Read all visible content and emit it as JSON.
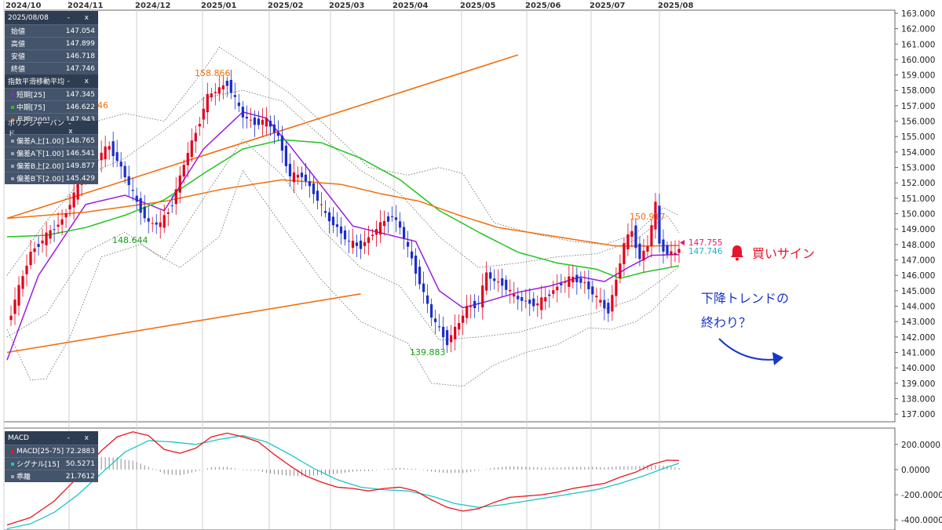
{
  "chart_data": {
    "type": "candlestick",
    "x_ticks": [
      "2024/10",
      "2024/11",
      "2024/12",
      "2025/01",
      "2025/02",
      "2025/03",
      "2025/04",
      "2025/05",
      "2025/06",
      "2025/07",
      "2025/08"
    ],
    "price_axis": {
      "ylim": [
        136.5,
        163.2
      ],
      "ticks": [
        "163.000",
        "162.000",
        "161.000",
        "160.000",
        "159.000",
        "158.000",
        "157.000",
        "156.000",
        "155.000",
        "154.000",
        "153.000",
        "152.000",
        "151.000",
        "150.000",
        "149.000",
        "148.000",
        "147.000",
        "146.000",
        "145.000",
        "144.000",
        "143.000",
        "142.000",
        "141.000",
        "140.000",
        "139.000",
        "138.000",
        "137.000"
      ]
    },
    "macd_axis": {
      "ylim": [
        -480,
        330
      ],
      "ticks": [
        "200.0000",
        "0.0000",
        "-200.0000",
        "-400.0000"
      ]
    },
    "annotations": {
      "high_dec": "158.866",
      "low_nov": "148.644",
      "low_apr": "139.883",
      "high_jul": "150.917",
      "partial_left": "46",
      "last_ask": "147.755",
      "last_bid": "147.746"
    },
    "close_keypoints": [
      [
        0,
        142.8
      ],
      [
        6,
        147.5
      ],
      [
        14,
        149.6
      ],
      [
        20,
        152.8
      ],
      [
        26,
        154.4
      ],
      [
        29,
        153.0
      ],
      [
        33,
        150.7
      ],
      [
        36,
        149.4
      ],
      [
        39,
        149.3
      ],
      [
        42,
        150.7
      ],
      [
        45,
        153.2
      ],
      [
        48,
        155.3
      ],
      [
        51,
        157.6
      ],
      [
        54,
        158.1
      ],
      [
        56,
        158.5
      ],
      [
        60,
        156.3
      ],
      [
        63,
        155.9
      ],
      [
        66,
        156.0
      ],
      [
        69,
        155.0
      ],
      [
        72,
        152.4
      ],
      [
        75,
        152.5
      ],
      [
        78,
        151.4
      ],
      [
        81,
        149.9
      ],
      [
        84,
        149.1
      ],
      [
        87,
        148.1
      ],
      [
        90,
        147.9
      ],
      [
        93,
        148.7
      ],
      [
        96,
        149.5
      ],
      [
        98,
        149.9
      ],
      [
        100,
        149.1
      ],
      [
        102,
        147.7
      ],
      [
        105,
        145.6
      ],
      [
        108,
        143.3
      ],
      [
        110,
        142.5
      ],
      [
        112,
        141.7
      ],
      [
        115,
        142.9
      ],
      [
        117,
        143.9
      ],
      [
        120,
        144.2
      ],
      [
        122,
        146.1
      ],
      [
        124,
        145.6
      ],
      [
        126,
        145.5
      ],
      [
        129,
        144.6
      ],
      [
        132,
        144.3
      ],
      [
        135,
        144.1
      ],
      [
        138,
        144.8
      ],
      [
        141,
        145.5
      ],
      [
        144,
        145.8
      ],
      [
        147,
        145.5
      ],
      [
        150,
        144.5
      ],
      [
        153,
        143.7
      ],
      [
        155,
        145.7
      ],
      [
        157,
        148.0
      ],
      [
        159,
        148.9
      ],
      [
        161,
        147.1
      ],
      [
        163,
        147.9
      ],
      [
        165,
        150.6
      ],
      [
        166,
        148.0
      ],
      [
        168,
        147.5
      ],
      [
        170,
        147.4
      ],
      [
        171,
        147.75
      ]
    ],
    "series": [
      {
        "name": "短期[25]",
        "color": "#9a1ce0",
        "values": [
          [
            0,
            140.5
          ],
          [
            8,
            146.0
          ],
          [
            20,
            150.6
          ],
          [
            30,
            151.2
          ],
          [
            40,
            150.2
          ],
          [
            50,
            154.2
          ],
          [
            60,
            156.6
          ],
          [
            66,
            156.2
          ],
          [
            72,
            154.4
          ],
          [
            80,
            151.8
          ],
          [
            88,
            149.2
          ],
          [
            96,
            148.7
          ],
          [
            104,
            148.2
          ],
          [
            110,
            145.0
          ],
          [
            116,
            143.9
          ],
          [
            122,
            144.3
          ],
          [
            130,
            144.9
          ],
          [
            138,
            145.3
          ],
          [
            146,
            145.9
          ],
          [
            152,
            145.6
          ],
          [
            158,
            146.5
          ],
          [
            164,
            147.3
          ],
          [
            171,
            147.35
          ]
        ]
      },
      {
        "name": "中期[75]",
        "color": "#21c41e",
        "values": [
          [
            0,
            148.5
          ],
          [
            10,
            148.6
          ],
          [
            20,
            149.1
          ],
          [
            30,
            149.9
          ],
          [
            40,
            150.9
          ],
          [
            50,
            152.6
          ],
          [
            60,
            154.2
          ],
          [
            70,
            154.8
          ],
          [
            80,
            154.6
          ],
          [
            90,
            153.6
          ],
          [
            100,
            152.2
          ],
          [
            110,
            150.2
          ],
          [
            120,
            148.8
          ],
          [
            130,
            147.5
          ],
          [
            140,
            146.8
          ],
          [
            150,
            146.4
          ],
          [
            156,
            145.8
          ],
          [
            162,
            146.2
          ],
          [
            171,
            146.62
          ]
        ]
      },
      {
        "name": "長期[200]",
        "color": "#f26e0c",
        "values": [
          [
            0,
            149.7
          ],
          [
            20,
            150.1
          ],
          [
            40,
            150.8
          ],
          [
            55,
            151.6
          ],
          [
            70,
            152.2
          ],
          [
            85,
            151.9
          ],
          [
            95,
            151.3
          ],
          [
            105,
            150.8
          ],
          [
            115,
            149.9
          ],
          [
            125,
            149.1
          ],
          [
            135,
            148.7
          ],
          [
            145,
            148.3
          ],
          [
            155,
            147.9
          ],
          [
            162,
            147.9
          ],
          [
            171,
            147.94
          ]
        ]
      }
    ],
    "bollinger": [
      {
        "name": "偏差A上[1.00]",
        "values": [
          [
            0,
            146.0
          ],
          [
            10,
            149.5
          ],
          [
            20,
            152.5
          ],
          [
            30,
            153.6
          ],
          [
            40,
            155.4
          ],
          [
            50,
            157.5
          ],
          [
            60,
            158.0
          ],
          [
            70,
            157.3
          ],
          [
            80,
            155.0
          ],
          [
            90,
            152.8
          ],
          [
            100,
            151.3
          ],
          [
            110,
            148.5
          ],
          [
            120,
            146.5
          ],
          [
            130,
            146.8
          ],
          [
            140,
            147.2
          ],
          [
            150,
            147.4
          ],
          [
            160,
            148.3
          ],
          [
            168,
            149.9
          ],
          [
            171,
            148.77
          ]
        ]
      },
      {
        "name": "偏差A下[1.00]",
        "values": [
          [
            0,
            142.0
          ],
          [
            10,
            143.5
          ],
          [
            20,
            147.5
          ],
          [
            30,
            148.8
          ],
          [
            40,
            147.0
          ],
          [
            50,
            151.0
          ],
          [
            60,
            154.8
          ],
          [
            70,
            152.5
          ],
          [
            80,
            149.0
          ],
          [
            90,
            146.5
          ],
          [
            100,
            145.3
          ],
          [
            110,
            141.8
          ],
          [
            120,
            142.0
          ],
          [
            130,
            142.3
          ],
          [
            140,
            143.0
          ],
          [
            150,
            143.6
          ],
          [
            160,
            144.5
          ],
          [
            171,
            146.54
          ]
        ]
      },
      {
        "name": "偏差B上[2.00]",
        "values": [
          [
            0,
            152.5
          ],
          [
            10,
            154.0
          ],
          [
            20,
            155.8
          ],
          [
            30,
            156.5
          ],
          [
            40,
            156.0
          ],
          [
            50,
            159.3
          ],
          [
            54,
            160.8
          ],
          [
            62,
            159.5
          ],
          [
            72,
            157.8
          ],
          [
            82,
            155.5
          ],
          [
            92,
            153.0
          ],
          [
            102,
            152.5
          ],
          [
            110,
            153.0
          ],
          [
            116,
            152.6
          ],
          [
            124,
            149.4
          ],
          [
            134,
            148.7
          ],
          [
            144,
            148.2
          ],
          [
            152,
            148.0
          ],
          [
            160,
            148.7
          ],
          [
            167,
            150.4
          ],
          [
            171,
            149.88
          ]
        ]
      },
      {
        "name": "偏差B下[2.00]",
        "values": [
          [
            0,
            142.5
          ],
          [
            6,
            139.2
          ],
          [
            10,
            139.3
          ],
          [
            16,
            142.0
          ],
          [
            24,
            147.2
          ],
          [
            34,
            148.0
          ],
          [
            44,
            146.5
          ],
          [
            54,
            148.5
          ],
          [
            60,
            152.8
          ],
          [
            70,
            149.2
          ],
          [
            80,
            145.7
          ],
          [
            90,
            143.0
          ],
          [
            102,
            141.6
          ],
          [
            108,
            139.0
          ],
          [
            116,
            138.8
          ],
          [
            124,
            140.2
          ],
          [
            132,
            141.0
          ],
          [
            140,
            141.5
          ],
          [
            148,
            142.6
          ],
          [
            154,
            142.5
          ],
          [
            160,
            143.0
          ],
          [
            164,
            143.7
          ],
          [
            171,
            145.43
          ]
        ]
      }
    ],
    "macd": [
      {
        "name": "MACD[25-75]",
        "color": "#e8141e",
        "values": [
          [
            0,
            -440
          ],
          [
            6,
            -380
          ],
          [
            12,
            -250
          ],
          [
            18,
            -60
          ],
          [
            24,
            150
          ],
          [
            28,
            260
          ],
          [
            32,
            300
          ],
          [
            36,
            270
          ],
          [
            40,
            160
          ],
          [
            44,
            130
          ],
          [
            48,
            170
          ],
          [
            52,
            260
          ],
          [
            56,
            290
          ],
          [
            60,
            260
          ],
          [
            64,
            220
          ],
          [
            68,
            120
          ],
          [
            72,
            30
          ],
          [
            76,
            -50
          ],
          [
            80,
            -100
          ],
          [
            84,
            -140
          ],
          [
            88,
            -150
          ],
          [
            92,
            -170
          ],
          [
            96,
            -150
          ],
          [
            100,
            -140
          ],
          [
            104,
            -170
          ],
          [
            108,
            -240
          ],
          [
            112,
            -300
          ],
          [
            116,
            -330
          ],
          [
            120,
            -310
          ],
          [
            124,
            -260
          ],
          [
            128,
            -220
          ],
          [
            132,
            -210
          ],
          [
            136,
            -200
          ],
          [
            140,
            -180
          ],
          [
            144,
            -150
          ],
          [
            148,
            -130
          ],
          [
            152,
            -110
          ],
          [
            156,
            -60
          ],
          [
            160,
            -20
          ],
          [
            164,
            40
          ],
          [
            168,
            75
          ],
          [
            171,
            72.29
          ]
        ]
      },
      {
        "name": "シグナル[15]",
        "color": "#1ec4c4",
        "values": [
          [
            0,
            -470
          ],
          [
            6,
            -430
          ],
          [
            12,
            -340
          ],
          [
            18,
            -200
          ],
          [
            24,
            -30
          ],
          [
            30,
            140
          ],
          [
            36,
            230
          ],
          [
            42,
            220
          ],
          [
            48,
            200
          ],
          [
            54,
            240
          ],
          [
            60,
            270
          ],
          [
            66,
            220
          ],
          [
            72,
            120
          ],
          [
            78,
            10
          ],
          [
            84,
            -80
          ],
          [
            90,
            -140
          ],
          [
            96,
            -160
          ],
          [
            102,
            -170
          ],
          [
            108,
            -210
          ],
          [
            114,
            -270
          ],
          [
            120,
            -300
          ],
          [
            126,
            -280
          ],
          [
            132,
            -250
          ],
          [
            138,
            -220
          ],
          [
            144,
            -190
          ],
          [
            150,
            -160
          ],
          [
            156,
            -110
          ],
          [
            162,
            -50
          ],
          [
            168,
            20
          ],
          [
            171,
            50.53
          ]
        ]
      },
      {
        "name": "乖離",
        "values": [
          [
            171,
            21.76
          ]
        ]
      }
    ],
    "trendlines": [
      {
        "from": [
          0,
          149.7
        ],
        "to": [
          130,
          160.3
        ]
      },
      {
        "from": [
          0,
          141.0
        ],
        "to": [
          90,
          144.8
        ]
      }
    ]
  },
  "panels": {
    "ohlc": {
      "title": "2025/08/08",
      "rows": [
        {
          "label": "始値",
          "value": "147.054"
        },
        {
          "label": "高値",
          "value": "147.899"
        },
        {
          "label": "安値",
          "value": "146.718"
        },
        {
          "label": "終値",
          "value": "147.746"
        }
      ]
    },
    "ema": {
      "title": "指数平滑移動平均",
      "rows": [
        {
          "label": "短期[25]",
          "value": "147.345",
          "color": "#9a1ce0"
        },
        {
          "label": "中期[75]",
          "value": "146.622",
          "color": "#21c41e"
        },
        {
          "label": "長期[200]",
          "value": "147.943",
          "color": "#f26e0c"
        }
      ]
    },
    "bb": {
      "title": "ボリンジャーバンド",
      "rows": [
        {
          "label": "偏差A上[1.00]",
          "value": "148.765",
          "color": "#9aa4b4"
        },
        {
          "label": "偏差A下[1.00]",
          "value": "146.541",
          "color": "#9aa4b4"
        },
        {
          "label": "偏差B上[2.00]",
          "value": "149.877",
          "color": "#9aa4b4"
        },
        {
          "label": "偏差B下[2.00]",
          "value": "145.429",
          "color": "#9aa4b4"
        }
      ]
    },
    "macd": {
      "title": "MACD",
      "rows": [
        {
          "label": "MACD[25-75]",
          "value": "72.2883",
          "color": "#e8141e"
        },
        {
          "label": "シグナル[15]",
          "value": "50.5271",
          "color": "#1ec4c4"
        },
        {
          "label": "乖離",
          "value": "21.7612",
          "color": "#9aa4b4"
        }
      ]
    },
    "controls": "- x"
  },
  "annotation": {
    "bell_icon": "bell-icon",
    "text": "買いサイン",
    "color": "#e8142b"
  },
  "note": {
    "line1": "下降トレンドの",
    "line2": "終わり？",
    "color": "#1836c8"
  }
}
